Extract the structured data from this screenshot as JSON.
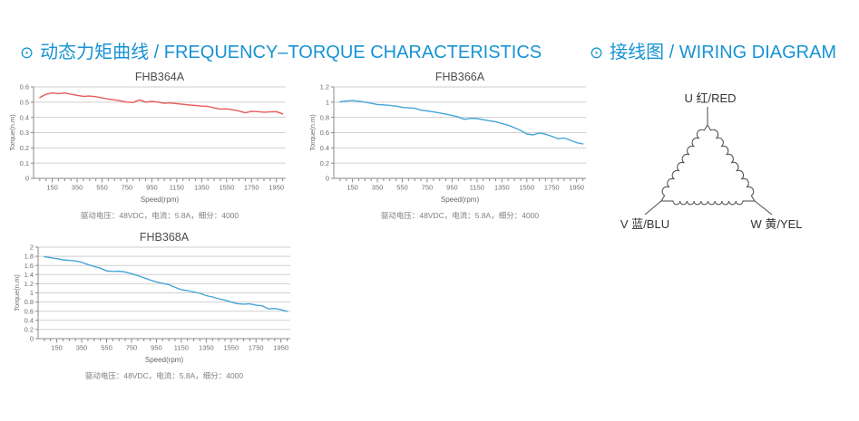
{
  "headings": {
    "bullet": "⊙",
    "left": "动态力矩曲线 / FREQUENCY–TORQUE CHARACTERISTICS",
    "right": "接线图 / WIRING DIAGRAM",
    "color": "#1793d3"
  },
  "chart_data": [
    {
      "type": "line",
      "title": "FHB364A",
      "xlabel": "Speed(rpm)",
      "ylabel": "Torque(n.m)",
      "caption": "驱动电压：48VDC，电流：5.8A，细分：4000",
      "color": "#e65c5c",
      "xlim": [
        0,
        2025
      ],
      "ylim": [
        0,
        0.6
      ],
      "yticks": [
        0,
        0.1,
        0.2,
        0.3,
        0.4,
        0.5,
        0.6
      ],
      "xticks": [
        150,
        350,
        550,
        750,
        950,
        1150,
        1350,
        1550,
        1750,
        1950
      ],
      "xminor": 50,
      "x": [
        50,
        100,
        150,
        200,
        250,
        300,
        350,
        400,
        450,
        500,
        550,
        600,
        650,
        700,
        750,
        800,
        850,
        900,
        950,
        1000,
        1050,
        1100,
        1150,
        1200,
        1250,
        1300,
        1350,
        1400,
        1450,
        1500,
        1550,
        1600,
        1650,
        1700,
        1750,
        1800,
        1850,
        1900,
        1950,
        2000
      ],
      "y": [
        0.53,
        0.552,
        0.56,
        0.556,
        0.56,
        0.552,
        0.545,
        0.538,
        0.54,
        0.536,
        0.528,
        0.52,
        0.515,
        0.508,
        0.5,
        0.498,
        0.515,
        0.5,
        0.505,
        0.5,
        0.493,
        0.495,
        0.49,
        0.486,
        0.482,
        0.478,
        0.474,
        0.472,
        0.462,
        0.455,
        0.456,
        0.45,
        0.442,
        0.43,
        0.44,
        0.438,
        0.434,
        0.436,
        0.438,
        0.423
      ]
    },
    {
      "type": "line",
      "title": "FHB366A",
      "xlabel": "Speed(rpm)",
      "ylabel": "Torque(n.m)",
      "caption": "驱动电压：48VDC，电流：5.8A，细分：4000",
      "color": "#45a5d6",
      "xlim": [
        0,
        2025
      ],
      "ylim": [
        0,
        1.2
      ],
      "yticks": [
        0,
        0.2,
        0.4,
        0.6,
        0.8,
        1,
        1.2
      ],
      "xticks": [
        150,
        350,
        550,
        750,
        950,
        1150,
        1350,
        1550,
        1750,
        1950
      ],
      "xminor": 50,
      "x": [
        50,
        100,
        150,
        200,
        250,
        300,
        350,
        400,
        450,
        500,
        550,
        600,
        650,
        700,
        750,
        800,
        850,
        900,
        950,
        1000,
        1050,
        1100,
        1150,
        1200,
        1250,
        1300,
        1350,
        1400,
        1450,
        1500,
        1550,
        1600,
        1650,
        1700,
        1750,
        1800,
        1850,
        1900,
        1950,
        2000
      ],
      "y": [
        1.005,
        1.015,
        1.02,
        1.012,
        1.0,
        0.985,
        0.97,
        0.965,
        0.958,
        0.948,
        0.932,
        0.925,
        0.92,
        0.895,
        0.885,
        0.872,
        0.858,
        0.842,
        0.825,
        0.805,
        0.775,
        0.788,
        0.784,
        0.77,
        0.756,
        0.744,
        0.72,
        0.698,
        0.665,
        0.63,
        0.582,
        0.57,
        0.595,
        0.58,
        0.552,
        0.522,
        0.53,
        0.5,
        0.468,
        0.452
      ]
    },
    {
      "type": "line",
      "title": "FHB368A",
      "xlabel": "Speed(rpm)",
      "ylabel": "Torque(n.m)",
      "caption": "驱动电压：48VDC，电流：5.8A，细分：4000",
      "color": "#45a5d6",
      "xlim": [
        0,
        2025
      ],
      "ylim": [
        0,
        2
      ],
      "yticks": [
        0,
        0.2,
        0.4,
        0.6,
        0.8,
        1,
        1.2,
        1.4,
        1.6,
        1.8,
        2
      ],
      "xticks": [
        150,
        350,
        550,
        750,
        950,
        1150,
        1350,
        1550,
        1750,
        1950
      ],
      "xminor": 50,
      "x": [
        50,
        100,
        150,
        200,
        250,
        300,
        350,
        400,
        450,
        500,
        550,
        600,
        650,
        700,
        750,
        800,
        850,
        900,
        950,
        1000,
        1050,
        1100,
        1150,
        1200,
        1250,
        1300,
        1350,
        1400,
        1450,
        1500,
        1550,
        1600,
        1650,
        1700,
        1750,
        1800,
        1850,
        1900,
        1950,
        2000
      ],
      "y": [
        1.79,
        1.77,
        1.748,
        1.722,
        1.71,
        1.7,
        1.672,
        1.62,
        1.578,
        1.54,
        1.482,
        1.47,
        1.475,
        1.458,
        1.42,
        1.378,
        1.33,
        1.282,
        1.24,
        1.21,
        1.18,
        1.12,
        1.072,
        1.05,
        1.02,
        0.99,
        0.94,
        0.91,
        0.872,
        0.84,
        0.8,
        0.765,
        0.755,
        0.76,
        0.73,
        0.718,
        0.65,
        0.66,
        0.632,
        0.596
      ]
    }
  ],
  "wiring": {
    "top": "U 红/RED",
    "left": "V 蓝/BLU",
    "right": "W 黄/YEL"
  }
}
